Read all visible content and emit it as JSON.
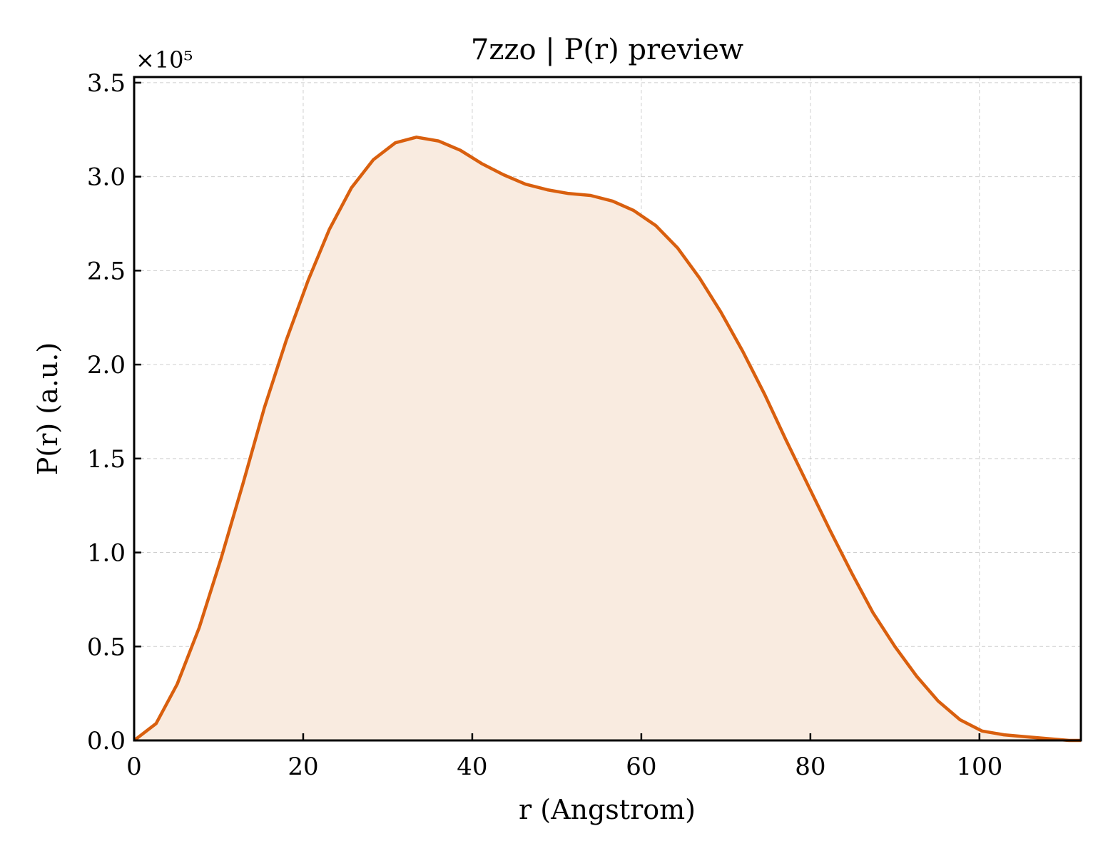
{
  "chart_data": {
    "type": "area",
    "title": "7zzo | P(r) preview",
    "xlabel": "r (Angstrom)",
    "ylabel": "P(r) (a.u.)",
    "y_offset_text": "×10⁵",
    "y_scale_factor": 100000,
    "xlim": [
      0,
      112
    ],
    "ylim": [
      0,
      3.53
    ],
    "x_ticks": [
      0,
      20,
      40,
      60,
      80,
      100
    ],
    "x_tick_labels": [
      "0",
      "20",
      "40",
      "60",
      "80",
      "100"
    ],
    "y_ticks": [
      0,
      0.5,
      1.0,
      1.5,
      2.0,
      2.5,
      3.0,
      3.5
    ],
    "y_tick_labels": [
      "0.0",
      "0.5",
      "1.0",
      "1.5",
      "2.0",
      "2.5",
      "3.0",
      "3.5"
    ],
    "grid": true,
    "series": [
      {
        "line_color": "#d95f0e",
        "fill_color": "#f9ebe0",
        "x": [
          0,
          2.6,
          5.1,
          7.7,
          10.3,
          12.9,
          15.4,
          18.0,
          20.6,
          23.1,
          25.7,
          28.3,
          30.9,
          33.4,
          36.0,
          38.6,
          41.1,
          43.7,
          46.3,
          48.9,
          51.4,
          54.0,
          56.6,
          59.1,
          61.7,
          64.3,
          66.9,
          69.4,
          72.0,
          74.6,
          77.1,
          79.7,
          82.3,
          84.9,
          87.4,
          90.0,
          92.6,
          95.1,
          97.7,
          100.3,
          102.9,
          105.4,
          108.0,
          110.6,
          112
        ],
        "y": [
          0.0,
          0.09,
          0.3,
          0.6,
          0.97,
          1.37,
          1.77,
          2.13,
          2.45,
          2.72,
          2.94,
          3.09,
          3.18,
          3.21,
          3.19,
          3.14,
          3.07,
          3.01,
          2.96,
          2.93,
          2.91,
          2.9,
          2.87,
          2.82,
          2.74,
          2.62,
          2.46,
          2.28,
          2.07,
          1.84,
          1.6,
          1.36,
          1.12,
          0.89,
          0.68,
          0.5,
          0.34,
          0.21,
          0.11,
          0.05,
          0.03,
          0.02,
          0.01,
          0.0,
          0.0
        ]
      }
    ]
  }
}
